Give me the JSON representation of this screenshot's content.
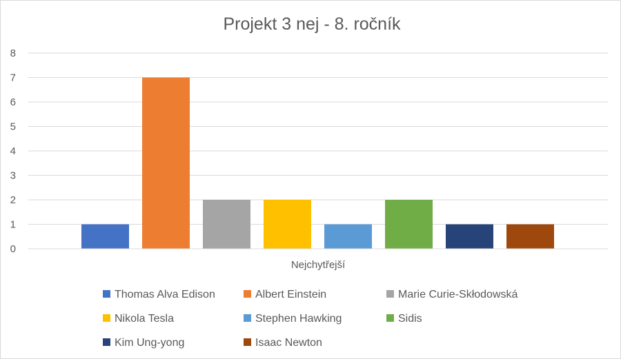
{
  "chart_data": {
    "type": "bar",
    "title": "Projekt 3 nej - 8. ročník",
    "categories": [
      "Nejchytřejší"
    ],
    "xlabel": "Nejchytřejší",
    "ylabel": "",
    "ylim": [
      0,
      8
    ],
    "yticks": [
      0,
      1,
      2,
      3,
      4,
      5,
      6,
      7,
      8
    ],
    "grid": true,
    "legend_position": "bottom",
    "series": [
      {
        "name": "Thomas Alva Edison",
        "values": [
          1
        ],
        "color": "#4472C4"
      },
      {
        "name": "Albert Einstein",
        "values": [
          7
        ],
        "color": "#ED7D31"
      },
      {
        "name": "Marie Curie-Skłodowská",
        "values": [
          2
        ],
        "color": "#A5A5A5"
      },
      {
        "name": "Nikola Tesla",
        "values": [
          2
        ],
        "color": "#FFC000"
      },
      {
        "name": "Stephen Hawking",
        "values": [
          1
        ],
        "color": "#5B9BD5"
      },
      {
        "name": "Sidis",
        "values": [
          2
        ],
        "color": "#70AD47"
      },
      {
        "name": "Kim Ung-yong",
        "values": [
          1
        ],
        "color": "#264478"
      },
      {
        "name": "Isaac Newton",
        "values": [
          1
        ],
        "color": "#9E480E"
      }
    ]
  }
}
